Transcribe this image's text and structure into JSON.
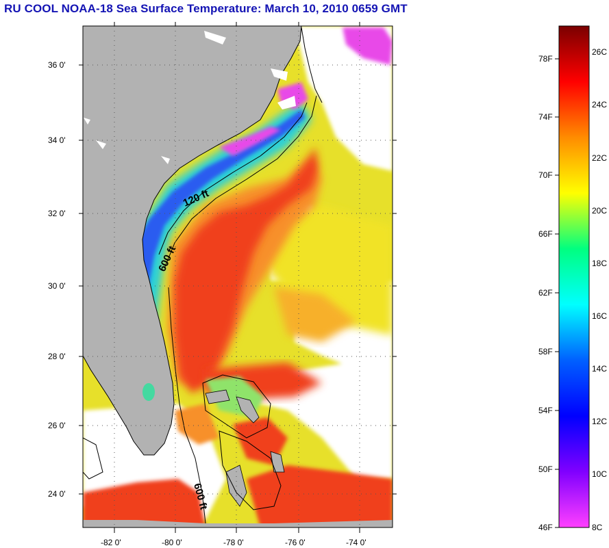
{
  "title": "RU COOL  NOAA-18  Sea Surface Temperature:  March 10, 2010 0659 GMT",
  "map": {
    "lat_ticks": [
      "36 0'",
      "34 0'",
      "32 0'",
      "30 0'",
      "28 0'",
      "26 0'",
      "24 0'"
    ],
    "lon_ticks": [
      "-82 0'",
      "-80 0'",
      "-78 0'",
      "-76 0'",
      "-74 0'"
    ],
    "contour_labels": [
      "120 ft",
      "600 ft",
      "600 ft"
    ],
    "colors": {
      "land": "#b2b2b2",
      "cloud": "#ffffff",
      "gulf_stream": "#f0401e",
      "shelf": "#2a6cf0",
      "warm_offshore": "#f5d214"
    }
  },
  "colorbar": {
    "fahrenheit_labels": [
      "78F",
      "74F",
      "70F",
      "66F",
      "62F",
      "58F",
      "54F",
      "50F",
      "46F"
    ],
    "celsius_labels": [
      "26C",
      "24C",
      "22C",
      "20C",
      "18C",
      "16C",
      "14C",
      "12C",
      "10C",
      "8C"
    ],
    "gradient_colors": [
      "#7a0000",
      "#ff0000",
      "#ff8c00",
      "#ffff00",
      "#00ff80",
      "#00ffff",
      "#0060ff",
      "#0000ff",
      "#8000ff",
      "#ff40ff"
    ]
  }
}
